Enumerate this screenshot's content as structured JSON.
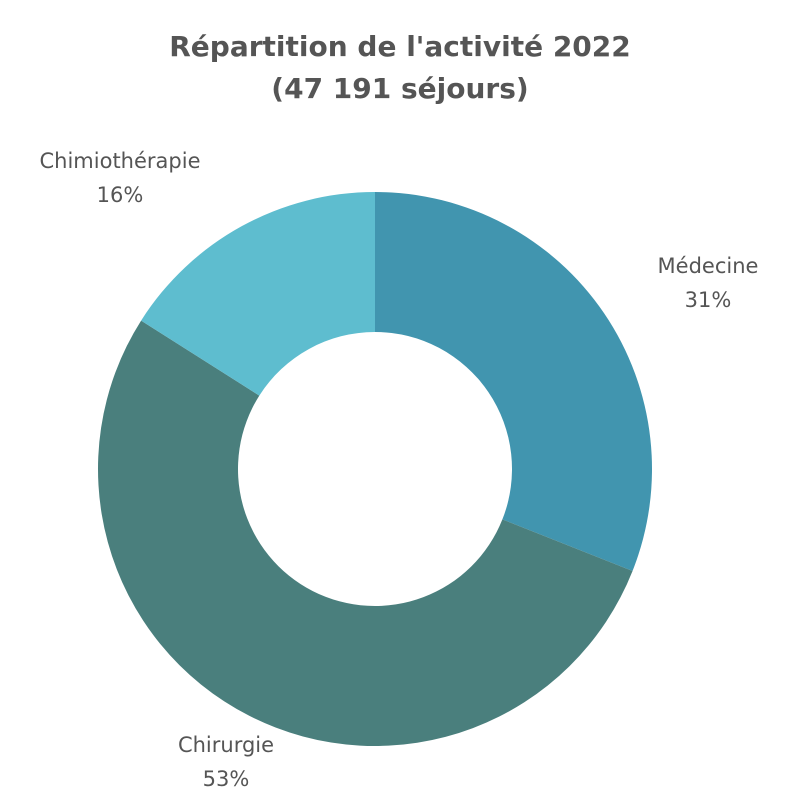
{
  "chart_data": {
    "type": "pie",
    "donut": true,
    "title": "Répartition de l'activité 2022",
    "subtitle": "(47 191 séjours)",
    "slices": [
      {
        "label": "Médecine",
        "value": 31,
        "value_label": "31%",
        "color": "#4195AF"
      },
      {
        "label": "Chirurgie",
        "value": 53,
        "value_label": "53%",
        "color": "#4A7F7D"
      },
      {
        "label": "Chimiothérapie",
        "value": 16,
        "value_label": "16%",
        "color": "#5EBDCF"
      }
    ]
  }
}
